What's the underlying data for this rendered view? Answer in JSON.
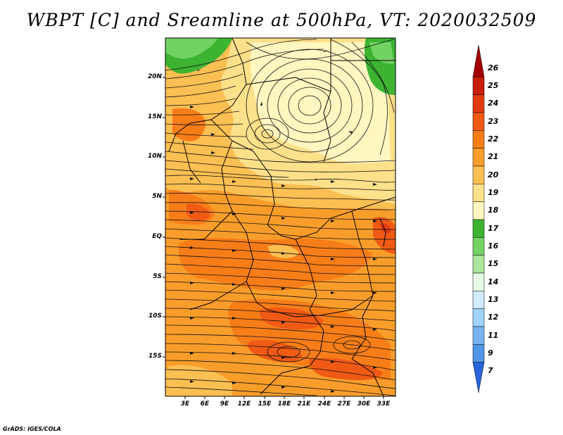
{
  "title": "WBPT [C] and Sreamline at 500hPa, VT: 2020032509",
  "credit": "GrADS: IGES/COLA",
  "map": {
    "lat_labels": [
      "20N",
      "15N",
      "10N",
      "5N",
      "EQ",
      "5S",
      "10S",
      "15S"
    ],
    "lon_labels": [
      "3E",
      "6E",
      "9E",
      "12E",
      "15E",
      "18E",
      "21E",
      "24E",
      "27E",
      "30E",
      "33E"
    ],
    "lat_values": [
      20,
      15,
      10,
      5,
      0,
      -5,
      -10,
      -15
    ],
    "lon_values": [
      3,
      6,
      9,
      12,
      15,
      18,
      21,
      24,
      27,
      30,
      33
    ]
  },
  "colorbar": {
    "labels": [
      "26",
      "25",
      "24",
      "23",
      "22",
      "21",
      "20",
      "19",
      "18",
      "17",
      "16",
      "15",
      "14",
      "13",
      "12",
      "11",
      "9",
      "7"
    ],
    "colors": [
      "#a50000",
      "#c81e0a",
      "#e03c10",
      "#f05a14",
      "#f77d18",
      "#f99d2a",
      "#fbbf52",
      "#fde08a",
      "#fff6c0",
      "#3cb432",
      "#73d264",
      "#aae69b",
      "#e6fae6",
      "#d2ebff",
      "#a0d2ff",
      "#78b4f0",
      "#5096e6",
      "#2864dc"
    ]
  }
}
